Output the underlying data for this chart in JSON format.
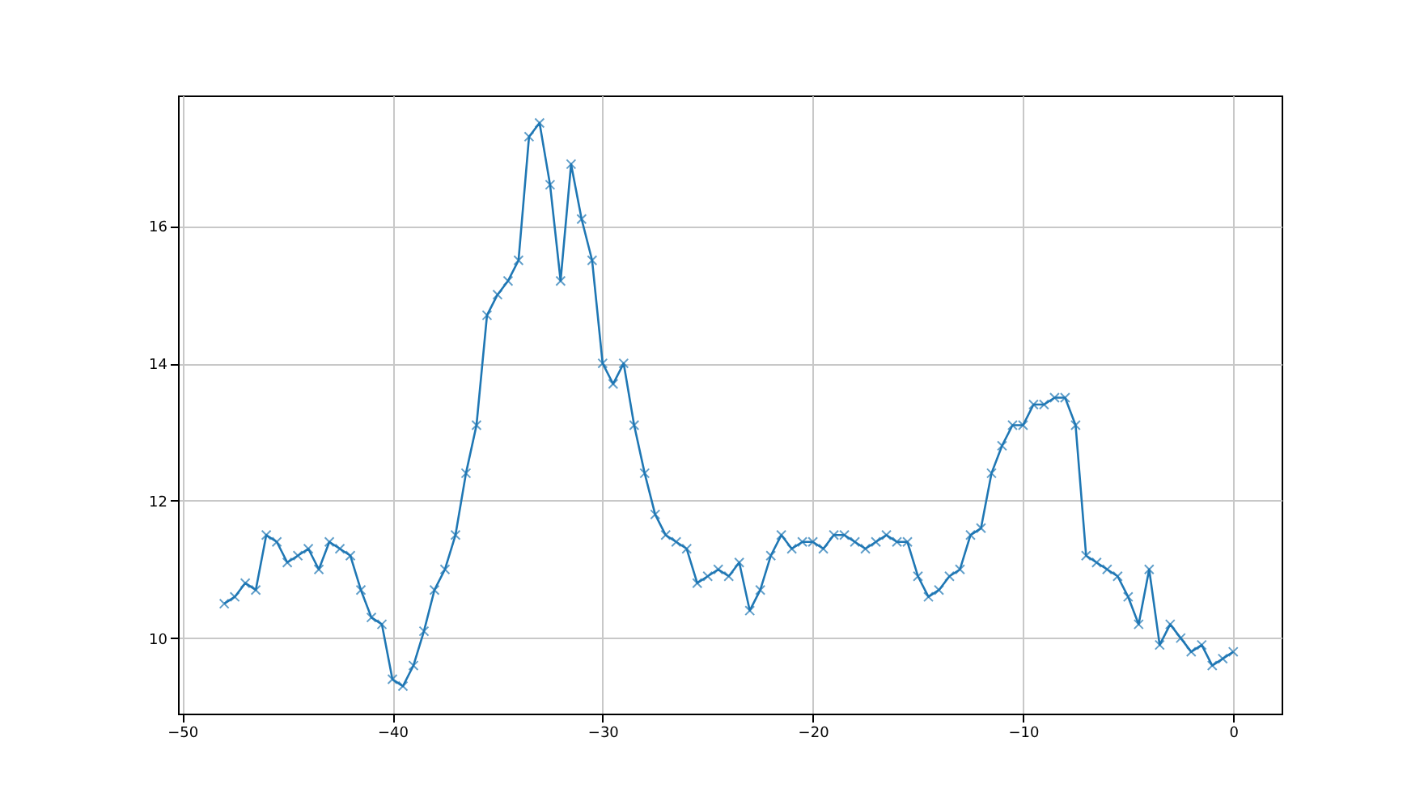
{
  "chart_data": {
    "type": "line",
    "x": [
      -48,
      -47.5,
      -47,
      -46.5,
      -46,
      -45.5,
      -45,
      -44.5,
      -44,
      -43.5,
      -43,
      -42.5,
      -42,
      -41.5,
      -41,
      -40.5,
      -40,
      -39.5,
      -39,
      -38.5,
      -38,
      -37.5,
      -37,
      -36.5,
      -36,
      -35.5,
      -35,
      -34.5,
      -34,
      -33.5,
      -33,
      -32.5,
      -32,
      -31.5,
      -31,
      -30.5,
      -30,
      -29.5,
      -29,
      -28.5,
      -28,
      -27.5,
      -27,
      -26.5,
      -26,
      -25.5,
      -25,
      -24.5,
      -24,
      -23.5,
      -23,
      -22.5,
      -22,
      -21.5,
      -21,
      -20.5,
      -20,
      -19.5,
      -19,
      -18.5,
      -18,
      -17.5,
      -17,
      -16.5,
      -16,
      -15.5,
      -15,
      -14.5,
      -14,
      -13.5,
      -13,
      -12.5,
      -12,
      -11.5,
      -11,
      -10.5,
      -10,
      -9.5,
      -9,
      -8.5,
      -8,
      -7.5,
      -7,
      -6.5,
      -6,
      -5.5,
      -5,
      -4.5,
      -4,
      -3.5,
      -3,
      -2.5,
      -2,
      -1.5,
      -1,
      -0.5,
      0
    ],
    "series": [
      {
        "color": "#1f77b4",
        "values": [
          10.5,
          10.6,
          10.8,
          10.7,
          11.5,
          11.4,
          11.1,
          11.2,
          11.3,
          11.0,
          11.4,
          11.3,
          11.2,
          10.7,
          10.3,
          10.2,
          9.4,
          9.3,
          9.6,
          10.1,
          10.7,
          11.0,
          11.5,
          12.4,
          13.1,
          14.7,
          15.0,
          15.2,
          15.5,
          17.3,
          17.5,
          16.6,
          15.2,
          16.9,
          16.1,
          15.5,
          14.0,
          13.7,
          14.0,
          13.1,
          12.4,
          11.8,
          11.5,
          11.4,
          11.3,
          10.8,
          10.9,
          11.0,
          10.9,
          11.1,
          10.4,
          10.7,
          11.2,
          11.5,
          11.3,
          11.4,
          11.4,
          11.3,
          11.5,
          11.5,
          11.4,
          11.3,
          11.4,
          11.5,
          11.4,
          11.4,
          10.9,
          10.6,
          10.7,
          10.9,
          11.0,
          11.5,
          11.6,
          12.4,
          12.8,
          13.1,
          13.1,
          13.4,
          13.4,
          13.5,
          13.5,
          13.1,
          11.2,
          11.1,
          11.0,
          10.9,
          10.6,
          10.2,
          11.0,
          9.9,
          10.2,
          10.0,
          9.8,
          9.9,
          9.6,
          9.7,
          9.8
        ]
      }
    ],
    "xlim": [
      -50.2,
      2.3
    ],
    "ylim": [
      8.9,
      17.9
    ],
    "xticks": [
      -50,
      -40,
      -30,
      -20,
      -10,
      0
    ],
    "yticks": [
      10,
      12,
      14,
      16
    ],
    "grid": true,
    "marker": "cross",
    "line_style": "solid"
  }
}
